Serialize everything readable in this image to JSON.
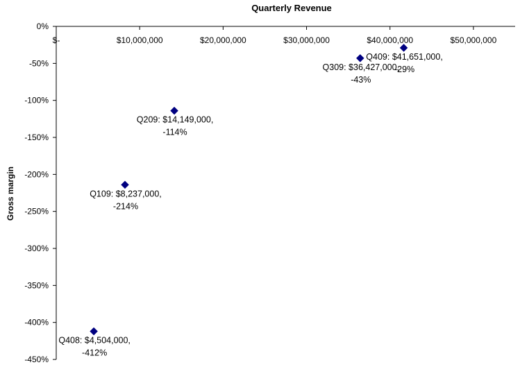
{
  "chart_data": {
    "type": "scatter",
    "title": "Quarterly Revenue",
    "xlabel": "",
    "ylabel": "Gross margin",
    "x_axis_position": "top",
    "xlim": [
      0,
      55000000
    ],
    "ylim": [
      -450,
      0
    ],
    "x_ticks": [
      0,
      10000000,
      20000000,
      30000000,
      40000000,
      50000000
    ],
    "x_tick_labels": [
      "$-",
      "$10,000,000",
      "$20,000,000",
      "$30,000,000",
      "$40,000,000",
      "$50,000,000"
    ],
    "y_ticks": [
      0,
      -50,
      -100,
      -150,
      -200,
      -250,
      -300,
      -350,
      -400,
      -450
    ],
    "y_tick_labels": [
      "0%",
      "-50%",
      "-100%",
      "-150%",
      "-200%",
      "-250%",
      "-300%",
      "-350%",
      "-400%",
      "-450%"
    ],
    "grid": false,
    "marker": "diamond",
    "marker_color": "#000080",
    "points": [
      {
        "label": "Q408",
        "x": 4504000,
        "y": -412,
        "label_line1": "Q408: $4,504,000,",
        "label_line2": "-412%"
      },
      {
        "label": "Q109",
        "x": 8237000,
        "y": -214,
        "label_line1": "Q109: $8,237,000,",
        "label_line2": "-214%"
      },
      {
        "label": "Q209",
        "x": 14149000,
        "y": -114,
        "label_line1": "Q209: $14,149,000,",
        "label_line2": "-114%"
      },
      {
        "label": "Q309",
        "x": 36427000,
        "y": -43,
        "label_line1": "Q309: $36,427,000,",
        "label_line2": "-43%"
      },
      {
        "label": "Q409",
        "x": 41651000,
        "y": -29,
        "label_line1": "Q409: $41,651,000,",
        "label_line2": "-29%"
      }
    ]
  }
}
